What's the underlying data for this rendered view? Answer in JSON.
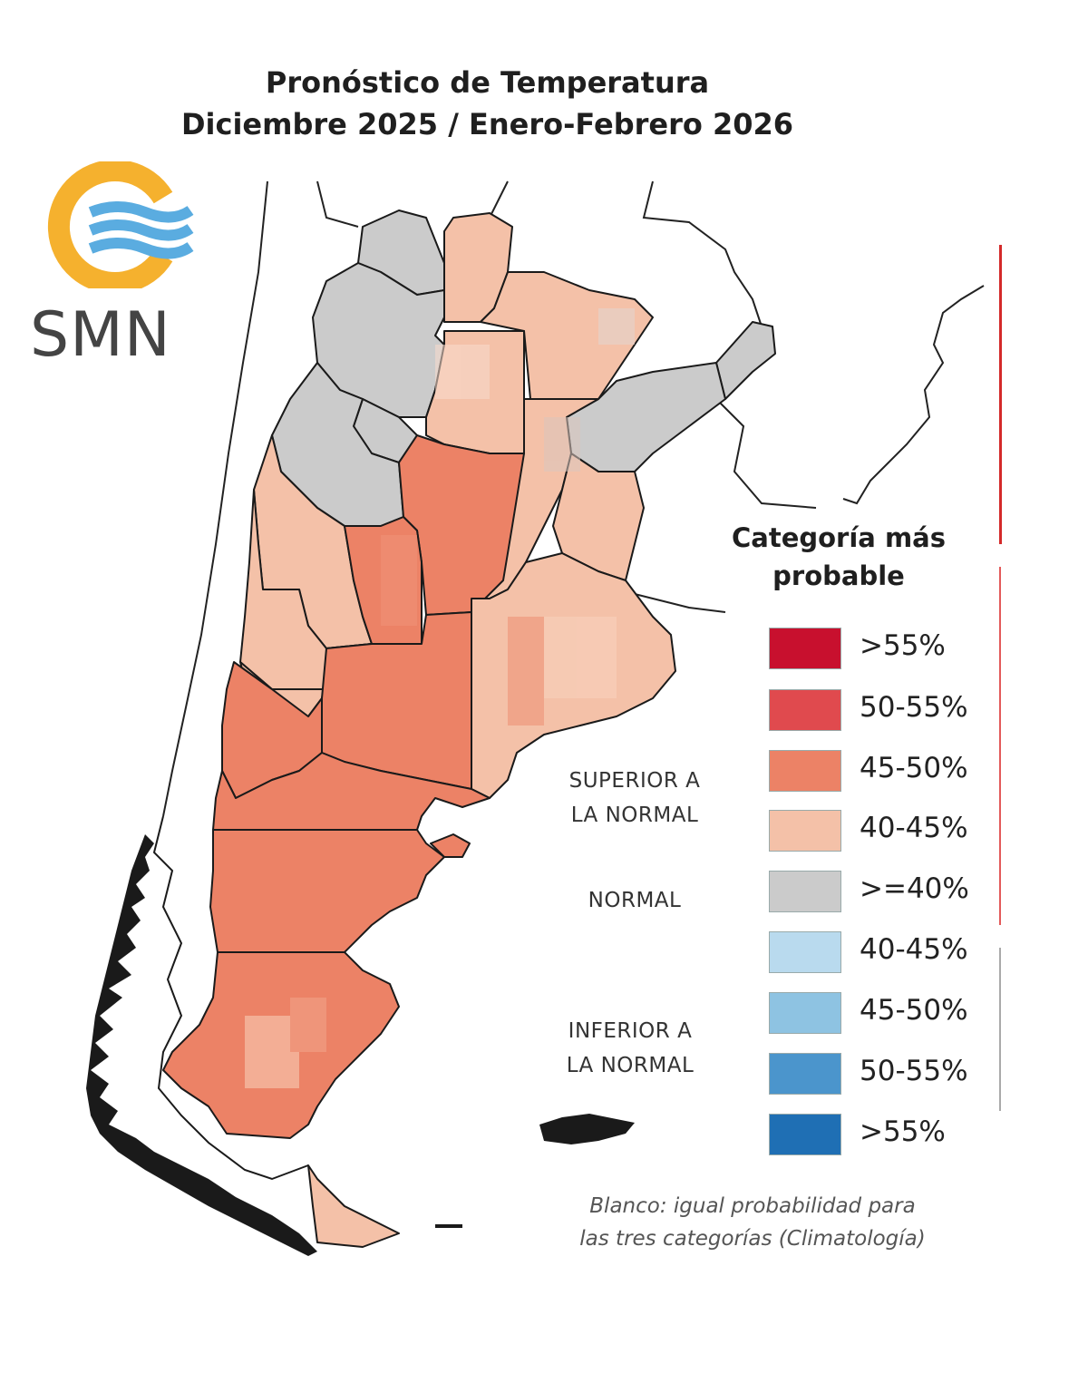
{
  "header": {
    "title_line1": "Pronóstico de Temperatura",
    "title_line2": "Diciembre 2025 / Enero-Febrero 2026"
  },
  "logo": {
    "text": "SMN",
    "ring_color": "#f5b12e",
    "wave_color": "#5aace0"
  },
  "legend": {
    "title_line1": "Categoría más",
    "title_line2": "probable",
    "items": [
      {
        "label": ">55%",
        "color": "#c8102e"
      },
      {
        "label": "50-55%",
        "color": "#e04a4e"
      },
      {
        "label": "45-50%",
        "color": "#ec8266"
      },
      {
        "label": "40-45%",
        "color": "#f4c1a8"
      },
      {
        "label": ">=40%",
        "color": "#cbcbcb"
      },
      {
        "label": "40-45%",
        "color": "#b9daee"
      },
      {
        "label": "45-50%",
        "color": "#8ec3e2"
      },
      {
        "label": "50-55%",
        "color": "#4b95cc"
      },
      {
        "label": ">55%",
        "color": "#1f6fb4"
      }
    ],
    "categories": {
      "superior_line1": "SUPERIOR A",
      "superior_line2": "LA NORMAL",
      "normal": "NORMAL",
      "inferior_line1": "INFERIOR A",
      "inferior_line2": "LA NORMAL"
    },
    "footnote_line1": "Blanco: igual probabilidad para",
    "footnote_line2": "las tres categorías (Climatología)"
  },
  "map_colors": {
    "above_40_45": "#f4c1a8",
    "above_45_50": "#ec8266",
    "normal": "#cbcbcb",
    "border": "#1a1a1a",
    "bar_above": "#d42a2a",
    "bar_below": "#999999"
  }
}
